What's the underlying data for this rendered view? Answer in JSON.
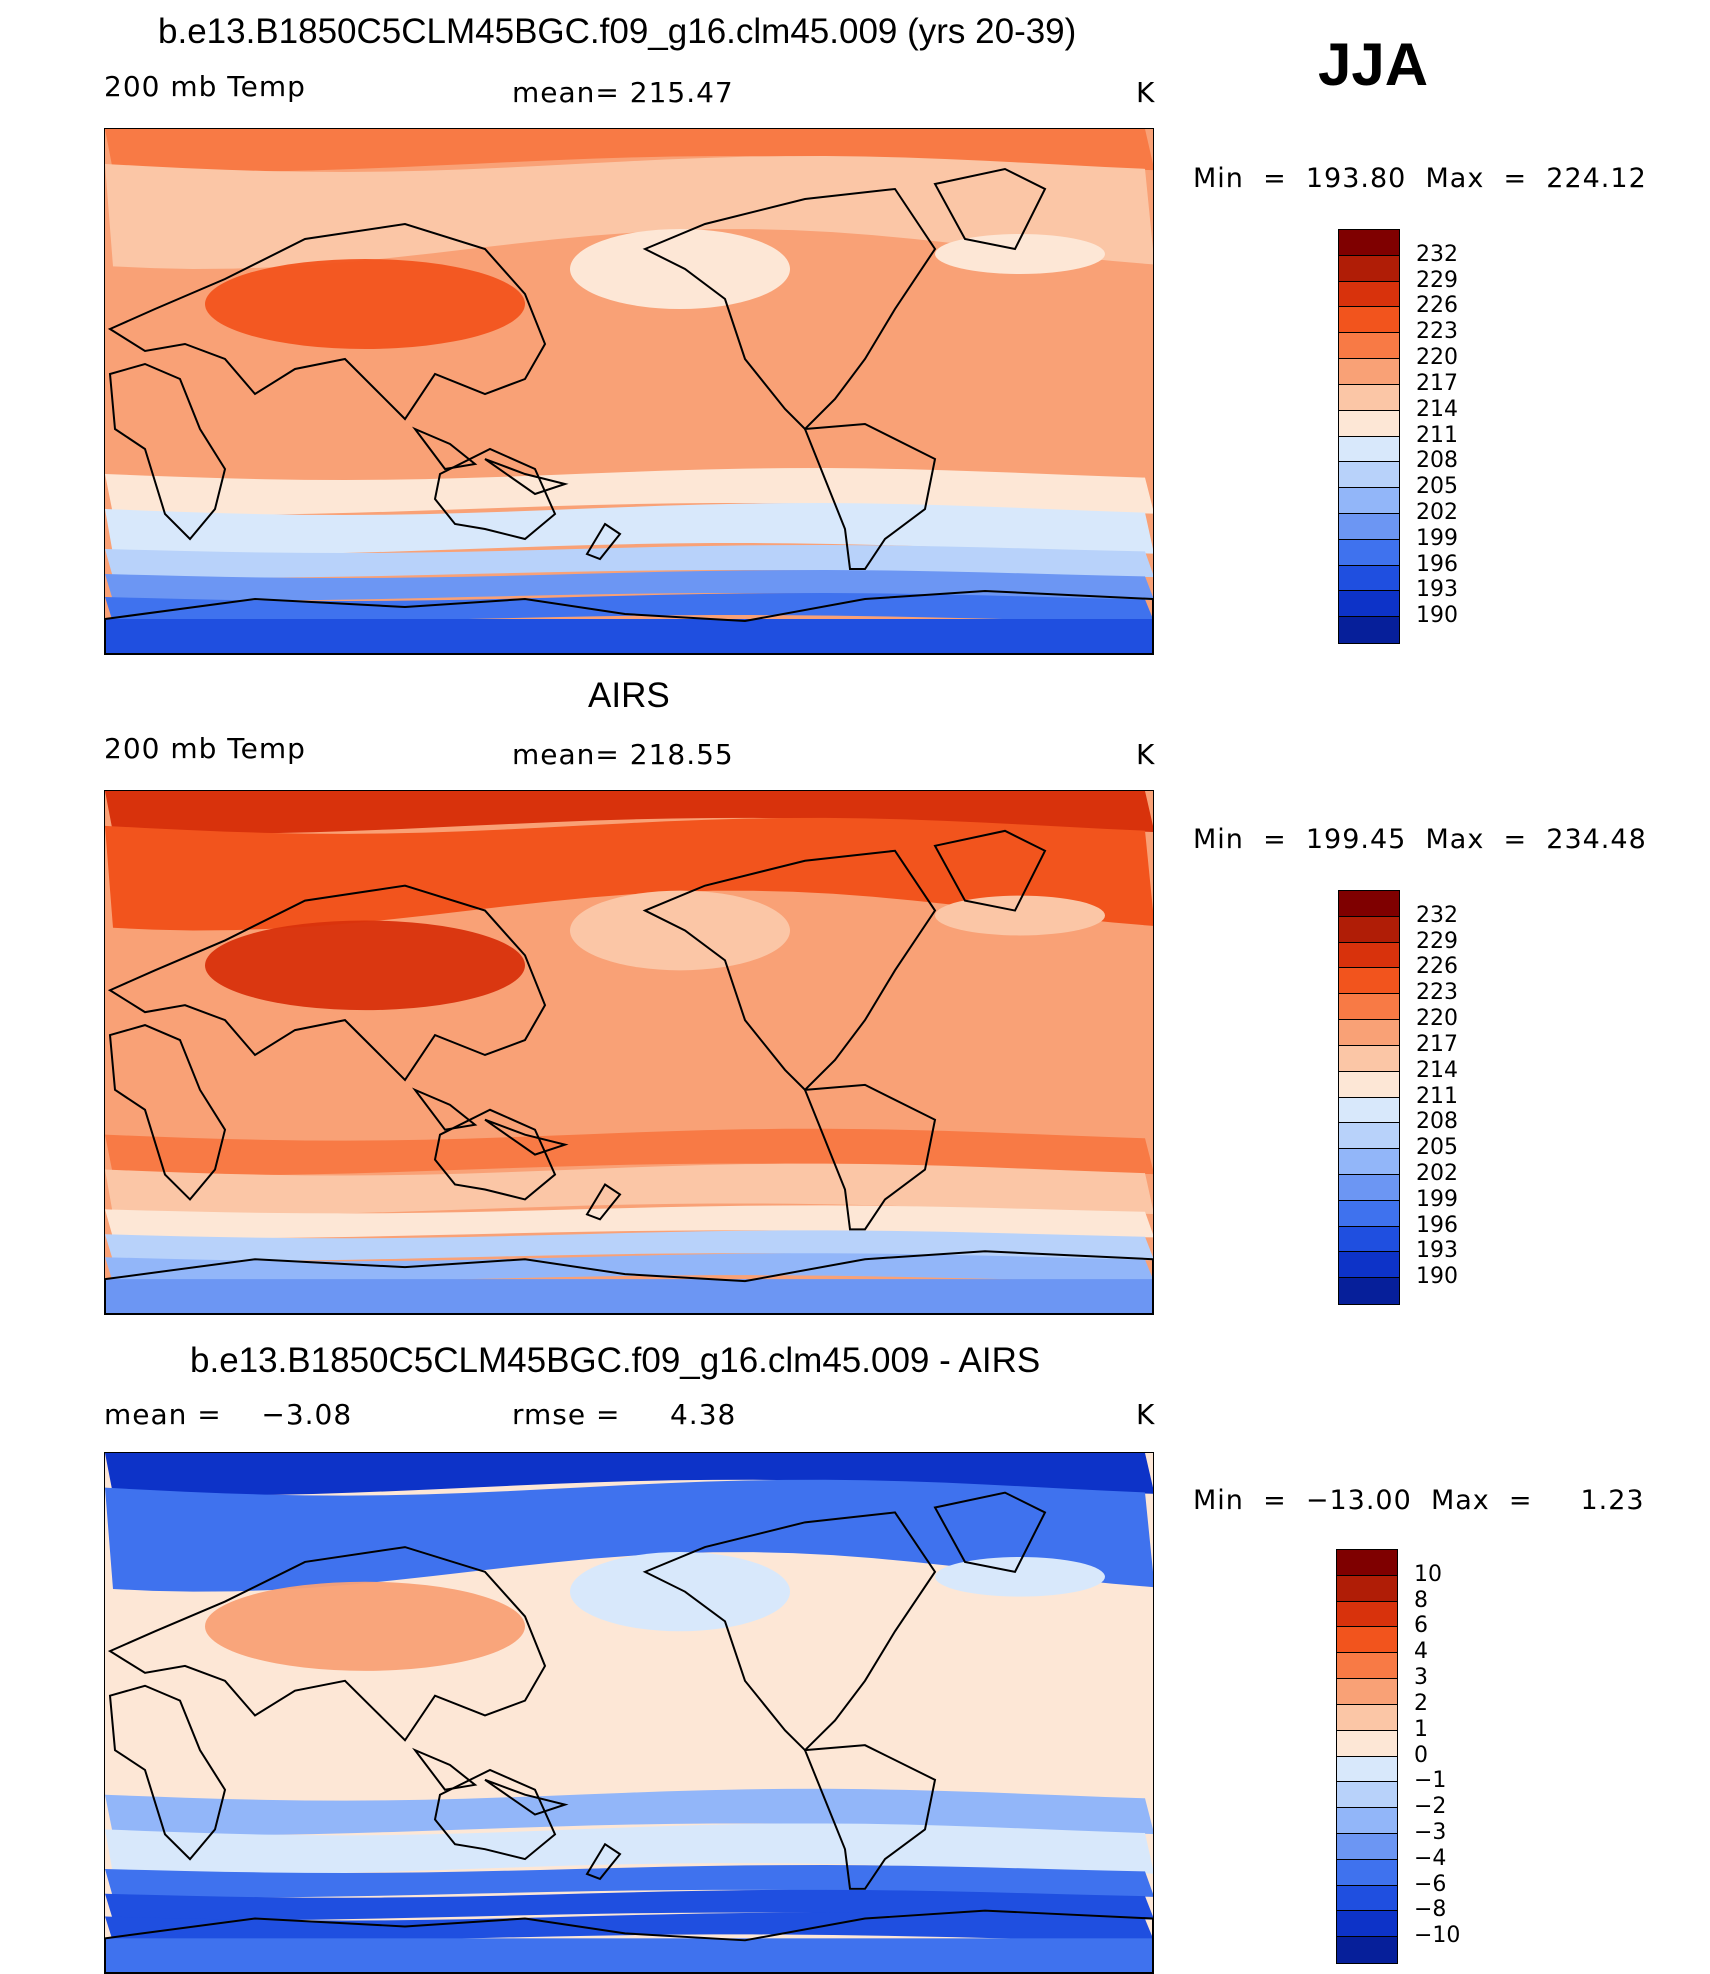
{
  "season": "JJA",
  "panels": [
    {
      "title": "b.e13.B1850C5CLM45BGC.f09_g16.clm45.009 (yrs 20-39)",
      "left": "200 mb Temp",
      "center": "mean= 215.47",
      "right": "K",
      "minmax": "Min  =  193.80  Max  =  224.12",
      "levels": [
        "232",
        "229",
        "226",
        "223",
        "220",
        "217",
        "214",
        "211",
        "208",
        "205",
        "202",
        "199",
        "196",
        "193",
        "190"
      ],
      "colors": [
        "#7f0000",
        "#b01d06",
        "#d8320c",
        "#f2541d",
        "#f87a45",
        "#f9a176",
        "#fbc6a6",
        "#fde7d6",
        "#d8e8fb",
        "#b8d2fa",
        "#92b6f9",
        "#6c96f3",
        "#3f72ee",
        "#1f4fe0",
        "#0d33c8",
        "#061f9a"
      ],
      "map_colors": {
        "polar_n": "#f87a45",
        "mid_n": "#fbc6a6",
        "tropics": "#f9a176",
        "warm_spot": "#f2541d",
        "cool_spot": "#fde7d6",
        "mid_s": "#fde7d6",
        "sub_s": "#d8e8fb",
        "high_s1": "#b8d2fa",
        "high_s2": "#6c96f3",
        "high_s3": "#3f72ee",
        "polar_s": "#1f4fe0"
      }
    },
    {
      "title": "AIRS",
      "left": "200 mb Temp",
      "center": "mean= 218.55",
      "right": "K",
      "minmax": "Min  =  199.45  Max  =  234.48",
      "levels": [
        "232",
        "229",
        "226",
        "223",
        "220",
        "217",
        "214",
        "211",
        "208",
        "205",
        "202",
        "199",
        "196",
        "193",
        "190"
      ],
      "colors": [
        "#7f0000",
        "#b01d06",
        "#d8320c",
        "#f2541d",
        "#f87a45",
        "#f9a176",
        "#fbc6a6",
        "#fde7d6",
        "#d8e8fb",
        "#b8d2fa",
        "#92b6f9",
        "#6c96f3",
        "#3f72ee",
        "#1f4fe0",
        "#0d33c8",
        "#061f9a"
      ],
      "map_colors": {
        "polar_n": "#d8320c",
        "mid_n": "#f2541d",
        "tropics": "#f9a176",
        "warm_spot": "#d8320c",
        "cool_spot": "#fbc6a6",
        "mid_s": "#f87a45",
        "sub_s": "#fbc6a6",
        "high_s1": "#fde7d6",
        "high_s2": "#b8d2fa",
        "high_s3": "#92b6f9",
        "polar_s": "#6c96f3"
      }
    },
    {
      "title": "b.e13.B1850C5CLM45BGC.f09_g16.clm45.009 - AIRS",
      "left": "mean =    −3.08",
      "center": "rmse =     4.38",
      "right": "K",
      "minmax": "Min  =  −13.00  Max  =     1.23",
      "levels": [
        "10",
        "8",
        "6",
        "4",
        "3",
        "2",
        "1",
        "0",
        "−1",
        "−2",
        "−3",
        "−4",
        "−6",
        "−8",
        "−10"
      ],
      "colors": [
        "#7f0000",
        "#b01d06",
        "#d8320c",
        "#f2541d",
        "#f87a45",
        "#f9a176",
        "#fbc6a6",
        "#fde7d6",
        "#d8e8fb",
        "#b8d2fa",
        "#92b6f9",
        "#6c96f3",
        "#3f72ee",
        "#1f4fe0",
        "#0d33c8",
        "#061f9a"
      ],
      "map_colors": {
        "polar_n": "#0d33c8",
        "mid_n": "#3f72ee",
        "tropics": "#fde7d6",
        "warm_spot": "#f9a176",
        "cool_spot": "#d8e8fb",
        "mid_s": "#92b6f9",
        "sub_s": "#d8e8fb",
        "high_s1": "#3f72ee",
        "high_s2": "#1f4fe0",
        "high_s3": "#1f4fe0",
        "polar_s": "#3f72ee"
      }
    }
  ]
}
